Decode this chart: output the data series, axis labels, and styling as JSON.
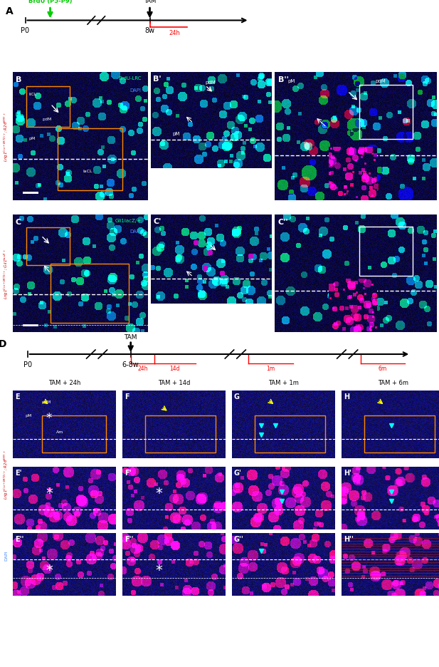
{
  "fig_width": 6.17,
  "fig_height": 9.37,
  "orange_box_color": "#ff8800",
  "col_headers": [
    "TAM + 24h",
    "TAM + 14d",
    "TAM + 1m",
    "TAM + 6m"
  ],
  "panel_A": {
    "brdu_color": "#00cc00",
    "brdu_label": "BrdU (P5-P9)",
    "tam_label": "TAM",
    "p0_label": "P0",
    "week_label": "8w",
    "time_24h": "24h"
  },
  "panel_D": {
    "tam_label": "TAM",
    "p0_label": "P0",
    "week_label": "6-8w",
    "timepoints": [
      "24h",
      "14d",
      "1m",
      "6m"
    ],
    "timepoint_color": "#cc0000"
  },
  "row_label_B": "Lrig1$^{Cre-ERT2/+}$; R26$^{BFP/+}$",
  "row_label_C": "Lrig1$^{Cre-ERT2/+}$; Gli1$^{lacZ/+}$",
  "row_label_E": "Lrig1$^{Cre-ERT2/+}$; R26$^{BFP/+}$",
  "label_color": "#cc0000",
  "white": "#ffffff",
  "yellow": "#ffff00",
  "cyan": "#00ffff",
  "green_signal": "#00ff88",
  "blue_dapi": "#4488ff",
  "red_signal": "#cc2200"
}
